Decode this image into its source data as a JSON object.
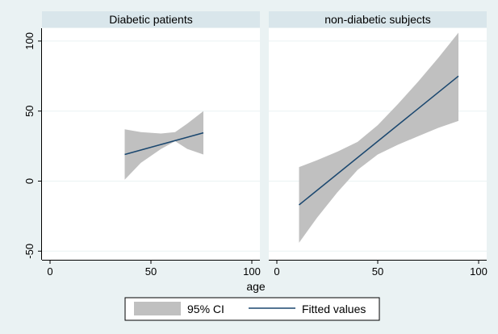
{
  "chart_data": {
    "type": "line",
    "xlabel": "age",
    "ylabel": "",
    "xlim": [
      0,
      100
    ],
    "ylim": [
      -50,
      110
    ],
    "x_ticks": [
      0,
      50,
      100
    ],
    "y_ticks": [
      -50,
      0,
      50,
      100
    ],
    "y_tick_labels": [
      "-50",
      "0",
      "50",
      "100"
    ],
    "grid": true,
    "legend": {
      "placement": "bottom",
      "entries": [
        "95% CI",
        "Fitted values"
      ]
    },
    "colors": {
      "background": "#eaf2f3",
      "plot_background": "#ffffff",
      "strip": "#d9e6eb",
      "ci_fill": "#c0c0c0",
      "fitted_line": "#1a476f",
      "grid": "#eaf2f3"
    },
    "panels": [
      {
        "title": "Diabetic patients",
        "x_tick_labels": [
          "0",
          "50",
          "100"
        ],
        "fitted": {
          "x": [
            37,
            76
          ],
          "y": [
            19,
            34.5
          ]
        },
        "ci": [
          {
            "x": 37,
            "lower": 1,
            "upper": 37
          },
          {
            "x": 45,
            "lower": 13,
            "upper": 35
          },
          {
            "x": 55,
            "lower": 23,
            "upper": 34
          },
          {
            "x": 62,
            "lower": 28.5,
            "upper": 35
          },
          {
            "x": 68,
            "lower": 23,
            "upper": 41
          },
          {
            "x": 76,
            "lower": 19,
            "upper": 50
          }
        ]
      },
      {
        "title": "non-diabetic subjects",
        "x_tick_labels": [
          "0",
          "50",
          "100"
        ],
        "fitted": {
          "x": [
            11,
            90
          ],
          "y": [
            -17,
            75
          ]
        },
        "ci": [
          {
            "x": 11,
            "lower": -44,
            "upper": 10
          },
          {
            "x": 20,
            "lower": -26,
            "upper": 15
          },
          {
            "x": 30,
            "lower": -8,
            "upper": 21
          },
          {
            "x": 40,
            "lower": 8,
            "upper": 28
          },
          {
            "x": 50,
            "lower": 19,
            "upper": 40
          },
          {
            "x": 60,
            "lower": 26,
            "upper": 55
          },
          {
            "x": 70,
            "lower": 32,
            "upper": 71
          },
          {
            "x": 80,
            "lower": 38,
            "upper": 88
          },
          {
            "x": 90,
            "lower": 43,
            "upper": 106
          }
        ]
      }
    ]
  }
}
